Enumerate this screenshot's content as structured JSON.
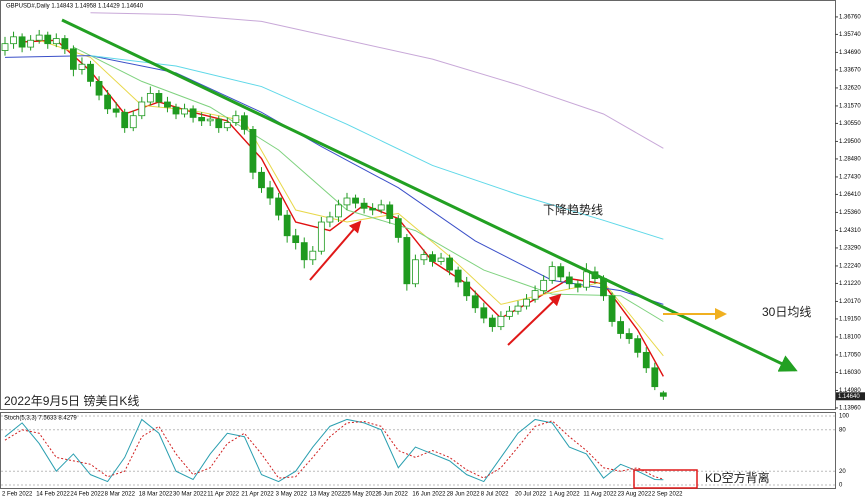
{
  "chart_data": [
    {
      "type": "candlestick",
      "title": "GBPUSD#,Daily  1.14843 1.14958 1.14429 1.14640",
      "annotations": [
        "下降趋势线",
        "30日均线",
        "2022年9月5日 镑美日K线",
        "KD空方背离"
      ],
      "categories": [
        "2 Feb 2022",
        null,
        null,
        null,
        "14 Feb 2022",
        null,
        null,
        null,
        "24 Feb 2022",
        null,
        null,
        null,
        "8 Mar 2022",
        null,
        null,
        null,
        "18 Mar 2022",
        null,
        null,
        null,
        "30 Mar 2022",
        null,
        null,
        null,
        "11 Apr 2022",
        null,
        null,
        null,
        "21 Apr 2022",
        null,
        null,
        null,
        "3 May 2022",
        null,
        null,
        null,
        "13 May 2022",
        null,
        null,
        null,
        "25 May 2022",
        null,
        null,
        null,
        "6 Jun 2022",
        null,
        null,
        null,
        "16 Jun 2022",
        null,
        null,
        null,
        "28 Jun 2022",
        null,
        null,
        null,
        "8 Jul 2022",
        null,
        null,
        null,
        "20 Jul 2022",
        null,
        null,
        null,
        "1 Aug 2022",
        null,
        null,
        null,
        "11 Aug 2022",
        null,
        null,
        null,
        "23 Aug 2022",
        null,
        null,
        null,
        "2 Sep 2022",
        null
      ],
      "candles": [
        [
          1.348,
          1.356,
          1.345,
          1.352
        ],
        [
          1.352,
          1.359,
          1.349,
          1.356
        ],
        [
          1.356,
          1.358,
          1.347,
          1.35
        ],
        [
          1.35,
          1.357,
          1.348,
          1.354
        ],
        [
          1.354,
          1.36,
          1.352,
          1.357
        ],
        [
          1.357,
          1.359,
          1.349,
          1.352
        ],
        [
          1.352,
          1.358,
          1.35,
          1.355
        ],
        [
          1.355,
          1.357,
          1.346,
          1.349
        ],
        [
          1.349,
          1.351,
          1.333,
          1.337
        ],
        [
          1.337,
          1.344,
          1.334,
          1.34
        ],
        [
          1.34,
          1.342,
          1.327,
          1.33
        ],
        [
          1.33,
          1.333,
          1.319,
          1.322
        ],
        [
          1.322,
          1.325,
          1.311,
          1.314
        ],
        [
          1.314,
          1.318,
          1.309,
          1.312
        ],
        [
          1.312,
          1.314,
          1.3,
          1.303
        ],
        [
          1.303,
          1.313,
          1.301,
          1.31
        ],
        [
          1.31,
          1.321,
          1.308,
          1.318
        ],
        [
          1.318,
          1.327,
          1.316,
          1.323
        ],
        [
          1.323,
          1.325,
          1.315,
          1.318
        ],
        [
          1.318,
          1.321,
          1.312,
          1.315
        ],
        [
          1.315,
          1.317,
          1.308,
          1.311
        ],
        [
          1.311,
          1.317,
          1.309,
          1.314
        ],
        [
          1.314,
          1.316,
          1.306,
          1.309
        ],
        [
          1.309,
          1.312,
          1.304,
          1.307
        ],
        [
          1.307,
          1.311,
          1.304,
          1.308
        ],
        [
          1.308,
          1.31,
          1.3,
          1.303
        ],
        [
          1.303,
          1.309,
          1.301,
          1.306
        ],
        [
          1.306,
          1.313,
          1.304,
          1.31
        ],
        [
          1.31,
          1.312,
          1.299,
          1.302
        ],
        [
          1.302,
          1.304,
          1.273,
          1.277
        ],
        [
          1.277,
          1.28,
          1.265,
          1.268
        ],
        [
          1.268,
          1.272,
          1.258,
          1.262
        ],
        [
          1.262,
          1.265,
          1.249,
          1.252
        ],
        [
          1.252,
          1.255,
          1.236,
          1.24
        ],
        [
          1.24,
          1.244,
          1.232,
          1.236
        ],
        [
          1.236,
          1.239,
          1.221,
          1.226
        ],
        [
          1.226,
          1.234,
          1.223,
          1.231
        ],
        [
          1.231,
          1.251,
          1.229,
          1.248
        ],
        [
          1.248,
          1.254,
          1.245,
          1.251
        ],
        [
          1.251,
          1.261,
          1.248,
          1.258
        ],
        [
          1.258,
          1.265,
          1.255,
          1.262
        ],
        [
          1.262,
          1.264,
          1.256,
          1.259
        ],
        [
          1.259,
          1.262,
          1.253,
          1.256
        ],
        [
          1.256,
          1.259,
          1.252,
          1.255
        ],
        [
          1.255,
          1.261,
          1.253,
          1.258
        ],
        [
          1.258,
          1.26,
          1.247,
          1.25
        ],
        [
          1.25,
          1.252,
          1.236,
          1.239
        ],
        [
          1.239,
          1.241,
          1.208,
          1.212
        ],
        [
          1.212,
          1.229,
          1.21,
          1.226
        ],
        [
          1.226,
          1.232,
          1.223,
          1.229
        ],
        [
          1.229,
          1.231,
          1.222,
          1.225
        ],
        [
          1.225,
          1.23,
          1.223,
          1.227
        ],
        [
          1.227,
          1.229,
          1.217,
          1.22
        ],
        [
          1.22,
          1.222,
          1.21,
          1.213
        ],
        [
          1.213,
          1.216,
          1.202,
          1.205
        ],
        [
          1.205,
          1.208,
          1.195,
          1.198
        ],
        [
          1.198,
          1.201,
          1.189,
          1.192
        ],
        [
          1.192,
          1.194,
          1.184,
          1.187
        ],
        [
          1.187,
          1.196,
          1.185,
          1.193
        ],
        [
          1.193,
          1.199,
          1.191,
          1.196
        ],
        [
          1.196,
          1.202,
          1.194,
          1.199
        ],
        [
          1.199,
          1.206,
          1.197,
          1.203
        ],
        [
          1.203,
          1.211,
          1.201,
          1.208
        ],
        [
          1.208,
          1.217,
          1.206,
          1.214
        ],
        [
          1.214,
          1.225,
          1.212,
          1.222
        ],
        [
          1.222,
          1.224,
          1.213,
          1.216
        ],
        [
          1.216,
          1.219,
          1.209,
          1.212
        ],
        [
          1.212,
          1.214,
          1.207,
          1.21
        ],
        [
          1.21,
          1.224,
          1.208,
          1.219
        ],
        [
          1.219,
          1.222,
          1.212,
          1.215
        ],
        [
          1.215,
          1.217,
          1.202,
          1.205
        ],
        [
          1.205,
          1.207,
          1.187,
          1.19
        ],
        [
          1.19,
          1.193,
          1.18,
          1.183
        ],
        [
          1.183,
          1.186,
          1.177,
          1.18
        ],
        [
          1.18,
          1.182,
          1.169,
          1.172
        ],
        [
          1.172,
          1.175,
          1.16,
          1.163
        ],
        [
          1.163,
          1.166,
          1.15,
          1.152
        ],
        [
          1.14843,
          1.14958,
          1.14429,
          1.1464
        ]
      ],
      "up_color": "#ffffff",
      "down_color": "#1f9a1f",
      "edge_color": "#1f9a1f",
      "lines": [
        {
          "color": "#e01010",
          "x": [
            2,
            6,
            10,
            14,
            18,
            22,
            26,
            30,
            34,
            38,
            42,
            46,
            50,
            54,
            58,
            62,
            66,
            70,
            74,
            77
          ],
          "values": [
            1.353,
            1.354,
            1.336,
            1.311,
            1.318,
            1.312,
            1.307,
            1.285,
            1.248,
            1.243,
            1.258,
            1.25,
            1.225,
            1.212,
            1.192,
            1.203,
            1.215,
            1.212,
            1.185,
            1.158
          ]
        },
        {
          "color": "#e8d84a",
          "x": [
            4,
            10,
            16,
            22,
            28,
            34,
            40,
            46,
            52,
            58,
            64,
            70,
            77
          ],
          "values": [
            1.354,
            1.344,
            1.316,
            1.313,
            1.307,
            1.255,
            1.248,
            1.253,
            1.228,
            1.2,
            1.207,
            1.213,
            1.17
          ]
        },
        {
          "color": "#7fd27f",
          "x": [
            8,
            16,
            24,
            32,
            40,
            48,
            56,
            64,
            72,
            77
          ],
          "values": [
            1.35,
            1.33,
            1.315,
            1.29,
            1.255,
            1.243,
            1.22,
            1.206,
            1.205,
            1.19
          ]
        },
        {
          "color": "#3a4fc8",
          "x": [
            0,
            10,
            20,
            30,
            37,
            46,
            55,
            64,
            72,
            77
          ],
          "values": [
            1.344,
            1.345,
            1.335,
            1.312,
            1.292,
            1.268,
            1.237,
            1.214,
            1.208,
            1.2
          ]
        },
        {
          "color": "#5fd8e8",
          "x": [
            10,
            20,
            30,
            40,
            50,
            60,
            70,
            77
          ],
          "values": [
            1.345,
            1.339,
            1.327,
            1.305,
            1.281,
            1.264,
            1.249,
            1.238
          ]
        },
        {
          "color": "#c8a8d8",
          "x": [
            10,
            20,
            30,
            40,
            50,
            60,
            70,
            77
          ],
          "values": [
            1.37,
            1.369,
            1.365,
            1.354,
            1.343,
            1.328,
            1.311,
            1.291
          ]
        }
      ],
      "ylim": [
        1.1384,
        1.3763
      ],
      "yticks": [
        {
          "value": 1.3676,
          "label": "1.36760"
        },
        {
          "value": 1.3574,
          "label": "1.35740"
        },
        {
          "value": 1.3469,
          "label": "1.34690"
        },
        {
          "value": 1.3367,
          "label": "1.33670"
        },
        {
          "value": 1.3262,
          "label": "1.32620"
        },
        {
          "value": 1.3157,
          "label": "1.31570"
        },
        {
          "value": 1.3055,
          "label": "1.30550"
        },
        {
          "value": 1.295,
          "label": "1.29500"
        },
        {
          "value": 1.2848,
          "label": "1.28480"
        },
        {
          "value": 1.2743,
          "label": "1.27430"
        },
        {
          "value": 1.2641,
          "label": "1.26410"
        },
        {
          "value": 1.2536,
          "label": "1.25360"
        },
        {
          "value": 1.2431,
          "label": "1.24310"
        },
        {
          "value": 1.2329,
          "label": "1.23290"
        },
        {
          "value": 1.2224,
          "label": "1.22240"
        },
        {
          "value": 1.2122,
          "label": "1.21220"
        },
        {
          "value": 1.2017,
          "label": "1.20170"
        },
        {
          "value": 1.1915,
          "label": "1.19150"
        },
        {
          "value": 1.181,
          "label": "1.18100"
        },
        {
          "value": 1.1705,
          "label": "1.17050"
        },
        {
          "value": 1.1603,
          "label": "1.16030"
        },
        {
          "value": 1.1498,
          "label": "1.14980"
        },
        {
          "value": 1.1396,
          "label": "1.13960"
        }
      ],
      "price_tag": {
        "value": 1.1464,
        "label": "1.14640"
      }
    },
    {
      "type": "line",
      "title": "Stoch(5,3,3) 7.5633 8.4279",
      "x": [
        0,
        2,
        4,
        6,
        8,
        10,
        12,
        14,
        16,
        18,
        20,
        22,
        24,
        26,
        28,
        30,
        32,
        34,
        36,
        38,
        40,
        42,
        44,
        46,
        48,
        50,
        52,
        54,
        56,
        58,
        60,
        62,
        64,
        66,
        68,
        70,
        72,
        74,
        76,
        77
      ],
      "series": [
        {
          "color": "#2a9fb0",
          "dash": false,
          "values": [
            70,
            90,
            60,
            20,
            45,
            15,
            5,
            40,
            95,
            75,
            20,
            8,
            45,
            75,
            70,
            15,
            5,
            20,
            55,
            85,
            95,
            90,
            80,
            25,
            55,
            45,
            35,
            15,
            5,
            40,
            75,
            95,
            90,
            55,
            45,
            10,
            30,
            20,
            8,
            7.5633
          ]
        },
        {
          "color": "#d02020",
          "dash": true,
          "values": [
            65,
            80,
            75,
            40,
            35,
            30,
            12,
            20,
            70,
            85,
            45,
            15,
            25,
            60,
            75,
            45,
            10,
            12,
            40,
            70,
            90,
            92,
            85,
            50,
            40,
            50,
            40,
            22,
            10,
            25,
            55,
            85,
            93,
            70,
            50,
            25,
            20,
            25,
            12,
            8.4279
          ]
        }
      ],
      "ylim": [
        0,
        100
      ],
      "yticks": [
        0,
        20,
        80,
        100
      ]
    }
  ]
}
